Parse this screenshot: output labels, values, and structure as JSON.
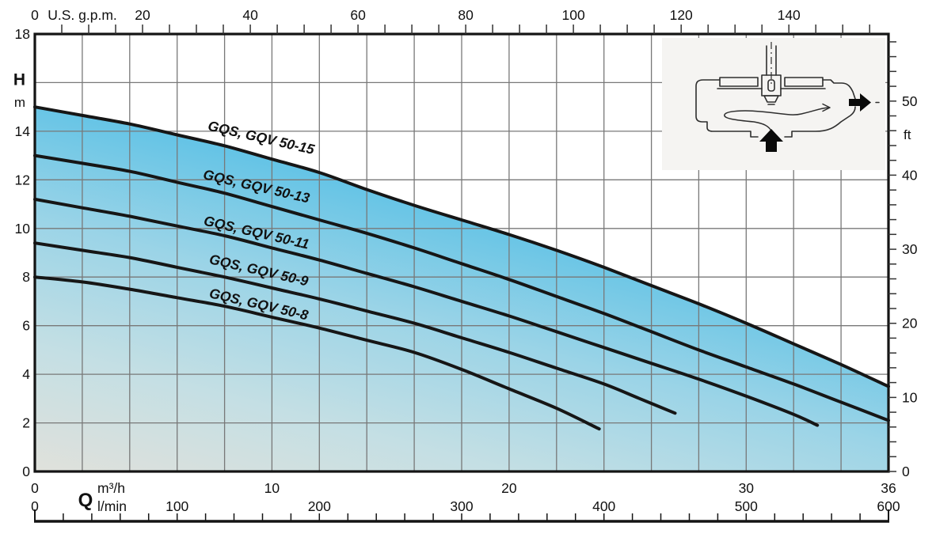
{
  "chart_data": {
    "type": "line",
    "title": "",
    "axes": {
      "top": {
        "unit": "U.S. g.p.m.",
        "zero_label": "0",
        "min": 0,
        "max": 158.5,
        "tick_step": 5,
        "labeled": [
          20,
          40,
          60,
          80,
          100,
          120,
          140
        ]
      },
      "left": {
        "label": "H",
        "unit": "m",
        "min": 0,
        "max": 18,
        "grid_step": 2,
        "labeled": [
          18,
          14,
          12,
          10,
          8,
          6,
          4,
          2,
          0
        ]
      },
      "right": {
        "unit": "ft",
        "metres_per_ft": 0.3048,
        "tick_step": 2,
        "tick_max": 58,
        "labeled": [
          50,
          40,
          30,
          20,
          10,
          0
        ]
      },
      "bottom_m3h": {
        "label": "Q",
        "unit": "m³/h",
        "min": 0,
        "max": 36,
        "grid_step": 2,
        "labeled": [
          0,
          10,
          20,
          30,
          36
        ]
      },
      "bottom_lmin": {
        "unit": "l/min",
        "min": 0,
        "max": 600,
        "tick_step": 20,
        "labeled": [
          0,
          100,
          200,
          300,
          400,
          500,
          600
        ]
      }
    },
    "series": [
      {
        "name": "GQS, GQV 50-15",
        "points": [
          [
            0,
            15.0
          ],
          [
            2,
            14.65
          ],
          [
            4,
            14.3
          ],
          [
            6,
            13.85
          ],
          [
            8,
            13.4
          ],
          [
            10,
            12.85
          ],
          [
            12,
            12.3
          ],
          [
            14,
            11.6
          ],
          [
            16,
            10.95
          ],
          [
            18,
            10.35
          ],
          [
            20,
            9.75
          ],
          [
            22,
            9.1
          ],
          [
            24,
            8.4
          ],
          [
            26,
            7.65
          ],
          [
            28,
            6.9
          ],
          [
            30,
            6.1
          ],
          [
            32,
            5.25
          ],
          [
            34,
            4.4
          ],
          [
            36,
            3.5
          ]
        ],
        "label": {
          "q": 9.5,
          "h": 13.55,
          "angle": 13
        }
      },
      {
        "name": "GQS, GQV 50-13",
        "points": [
          [
            0,
            13.0
          ],
          [
            2,
            12.68
          ],
          [
            4,
            12.35
          ],
          [
            6,
            11.9
          ],
          [
            8,
            11.45
          ],
          [
            10,
            10.9
          ],
          [
            12,
            10.35
          ],
          [
            14,
            9.8
          ],
          [
            16,
            9.2
          ],
          [
            18,
            8.55
          ],
          [
            20,
            7.9
          ],
          [
            22,
            7.2
          ],
          [
            24,
            6.5
          ],
          [
            26,
            5.75
          ],
          [
            28,
            5.0
          ],
          [
            30,
            4.3
          ],
          [
            32,
            3.6
          ],
          [
            34,
            2.85
          ],
          [
            36,
            2.1
          ]
        ],
        "label": {
          "q": 9.3,
          "h": 11.55,
          "angle": 13
        }
      },
      {
        "name": "GQS, GQV 50-11",
        "points": [
          [
            0,
            11.2
          ],
          [
            2,
            10.85
          ],
          [
            4,
            10.5
          ],
          [
            6,
            10.1
          ],
          [
            8,
            9.7
          ],
          [
            10,
            9.2
          ],
          [
            12,
            8.7
          ],
          [
            14,
            8.15
          ],
          [
            16,
            7.6
          ],
          [
            18,
            7.0
          ],
          [
            20,
            6.4
          ],
          [
            22,
            5.75
          ],
          [
            24,
            5.1
          ],
          [
            26,
            4.45
          ],
          [
            28,
            3.8
          ],
          [
            30,
            3.1
          ],
          [
            32,
            2.35
          ],
          [
            33,
            1.9
          ]
        ],
        "label": {
          "q": 9.3,
          "h": 9.65,
          "angle": 13
        }
      },
      {
        "name": "GQS, GQV 50-9",
        "points": [
          [
            0,
            9.4
          ],
          [
            2,
            9.1
          ],
          [
            4,
            8.8
          ],
          [
            6,
            8.4
          ],
          [
            8,
            8.0
          ],
          [
            10,
            7.55
          ],
          [
            12,
            7.1
          ],
          [
            14,
            6.6
          ],
          [
            16,
            6.1
          ],
          [
            18,
            5.5
          ],
          [
            20,
            4.9
          ],
          [
            22,
            4.25
          ],
          [
            24,
            3.6
          ],
          [
            25.5,
            3.0
          ],
          [
            27,
            2.4
          ]
        ],
        "label": {
          "q": 9.4,
          "h": 8.1,
          "angle": 13
        }
      },
      {
        "name": "GQS, GQV 50-8",
        "points": [
          [
            0,
            8.0
          ],
          [
            2,
            7.8
          ],
          [
            4,
            7.5
          ],
          [
            6,
            7.15
          ],
          [
            8,
            6.8
          ],
          [
            10,
            6.35
          ],
          [
            12,
            5.9
          ],
          [
            14,
            5.4
          ],
          [
            16,
            4.9
          ],
          [
            18,
            4.2
          ],
          [
            20,
            3.4
          ],
          [
            22,
            2.6
          ],
          [
            23.8,
            1.75
          ]
        ],
        "label": {
          "q": 9.4,
          "h": 6.7,
          "angle": 13
        }
      }
    ],
    "style": {
      "fill_gradient": [
        "#e0e1db",
        "#c4dfe4",
        "#9bd4e7",
        "#62c3e6",
        "#3cb4e1"
      ],
      "curve_color": "#161616",
      "grid_color": "#787878",
      "border_color": "#141414",
      "text_color": "#111111"
    },
    "legend_position": "on-curve",
    "grid": true
  },
  "inset": {
    "name": "pump-cross-section-schematic",
    "background": "#f5f4f2",
    "line_color": "#2e2e2e",
    "arrow_color": "#0a0a0a",
    "icons": [
      "inlet-up-arrow",
      "outlet-right-arrow",
      "impeller",
      "shaft-centerline",
      "flow-path-arrow"
    ]
  }
}
